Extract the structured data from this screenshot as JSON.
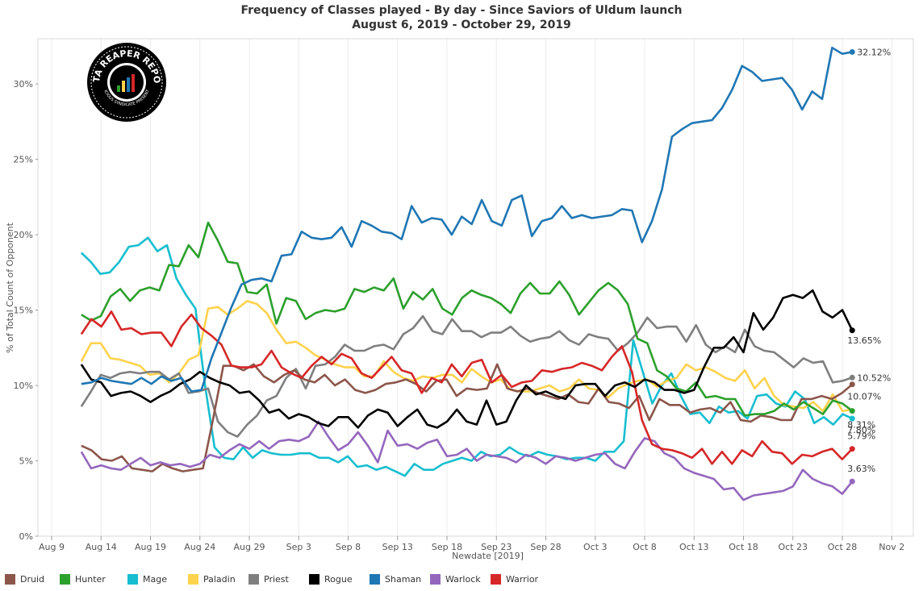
{
  "title": "Frequency of Classes played - By day - Since Saviors of Uldum launch",
  "subtitle": "August 6, 2019 - October 29, 2019",
  "logo": {
    "text_top": "DATA REAPER REPORT",
    "text_bottom": "VICIOUS SYNDICATE PRESENTS"
  },
  "chart_data": {
    "type": "line",
    "title": "Frequency of Classes played - By day - Since Saviors of Uldum launch",
    "subtitle": "August 6, 2019 - October 29, 2019",
    "xlabel": "Newdate [2019]",
    "ylabel": "% of Total Count of Opponent",
    "ylim": [
      0,
      33
    ],
    "yticks": [
      "0%",
      "5%",
      "10%",
      "15%",
      "20%",
      "25%",
      "30%"
    ],
    "ytick_values": [
      0,
      5,
      10,
      15,
      20,
      25,
      30
    ],
    "xticks": [
      "Aug 9",
      "Aug 14",
      "Aug 19",
      "Aug 24",
      "Aug 29",
      "Sep 3",
      "Sep 8",
      "Sep 13",
      "Sep 18",
      "Sep 23",
      "Sep 28",
      "Oct 3",
      "Oct 8",
      "Oct 13",
      "Oct 18",
      "Oct 23",
      "Oct 28",
      "Nov 2"
    ],
    "x_start": "Aug 12",
    "x_end": "Oct 29",
    "grid": "vertical",
    "legend": "bottom",
    "series": [
      {
        "name": "Druid",
        "color": "#8c564b",
        "end_label": "10.07%",
        "values": [
          6.0,
          5.7,
          5.1,
          5.0,
          5.3,
          4.5,
          4.4,
          4.3,
          4.8,
          4.5,
          4.3,
          4.4,
          4.5,
          7.8,
          11.3,
          11.3,
          11.0,
          11.4,
          10.6,
          10.2,
          10.7,
          11.0,
          10.4,
          10.2,
          10.7,
          10.0,
          10.4,
          9.7,
          9.5,
          9.7,
          10.1,
          10.2,
          10.4,
          10.1,
          9.6,
          10.3,
          10.4,
          9.3,
          9.8,
          9.7,
          9.8,
          11.4,
          9.8,
          9.6,
          9.8,
          9.5,
          9.3,
          9.1,
          9.4,
          8.9,
          8.8,
          9.8,
          8.9,
          8.8,
          8.5,
          9.3,
          7.7,
          9.1,
          8.7,
          8.7,
          8.2,
          8.4,
          8.5,
          8.2,
          8.9,
          7.7,
          7.6,
          8.0,
          7.9,
          7.7,
          7.7,
          9.1,
          9.1,
          9.3,
          9.1,
          9.5,
          10.07
        ]
      },
      {
        "name": "Hunter",
        "color": "#2ca02c",
        "end_label": "8.31%",
        "values": [
          14.7,
          14.3,
          14.6,
          15.9,
          16.4,
          15.6,
          16.3,
          16.5,
          16.3,
          18.0,
          17.9,
          19.3,
          18.5,
          20.8,
          19.6,
          18.2,
          18.1,
          16.2,
          16.1,
          16.7,
          14.1,
          15.8,
          15.6,
          14.4,
          14.8,
          15.0,
          14.9,
          15.1,
          16.4,
          16.2,
          16.5,
          16.3,
          17.1,
          15.1,
          16.2,
          15.7,
          16.4,
          15.1,
          14.7,
          15.8,
          16.3,
          16.0,
          15.8,
          15.4,
          14.8,
          16.1,
          16.8,
          16.1,
          16.1,
          16.9,
          16.0,
          14.7,
          15.5,
          16.3,
          16.8,
          16.3,
          15.4,
          13.1,
          12.8,
          11.0,
          10.6,
          9.8,
          9.6,
          10.2,
          9.2,
          9.3,
          9.1,
          9.1,
          8.0,
          8.1,
          8.1,
          8.3,
          8.8,
          8.4,
          8.9,
          8.5,
          8.1,
          9.0,
          8.8,
          8.31
        ]
      },
      {
        "name": "Mage",
        "color": "#17becf",
        "end_label": "7.80%",
        "values": [
          18.8,
          18.2,
          17.4,
          17.5,
          18.2,
          19.2,
          19.3,
          19.8,
          18.9,
          19.3,
          17.1,
          16.0,
          15.1,
          10.0,
          5.9,
          5.2,
          5.1,
          5.9,
          5.2,
          5.7,
          5.5,
          5.4,
          5.4,
          5.5,
          5.5,
          5.2,
          5.2,
          4.9,
          5.3,
          4.6,
          4.7,
          4.4,
          4.6,
          4.3,
          4.0,
          4.8,
          4.4,
          4.4,
          4.8,
          5.0,
          5.2,
          5.0,
          5.6,
          5.3,
          5.4,
          5.9,
          5.5,
          5.3,
          5.6,
          5.4,
          5.3,
          5.1,
          5.2,
          5.2,
          5.0,
          5.6,
          5.6,
          6.3,
          13.0,
          10.9,
          8.8,
          10.0,
          10.8,
          9.3,
          8.1,
          8.2,
          7.5,
          8.6,
          8.2,
          8.3,
          7.8,
          9.3,
          9.4,
          8.8,
          8.6,
          9.6,
          9.1,
          7.5,
          7.9,
          7.4,
          8.1,
          7.8
        ]
      },
      {
        "name": "Paladin",
        "color": "#ffd24d",
        "end_label": "",
        "values": [
          11.6,
          12.8,
          12.8,
          11.8,
          11.7,
          11.5,
          11.3,
          10.7,
          10.8,
          10.2,
          10.8,
          11.7,
          12.0,
          15.1,
          15.2,
          14.7,
          15.1,
          15.6,
          15.4,
          14.8,
          13.7,
          12.8,
          12.9,
          12.5,
          12.0,
          11.7,
          11.4,
          11.2,
          11.2,
          10.6,
          10.6,
          11.6,
          10.9,
          10.5,
          10.3,
          10.6,
          10.5,
          10.7,
          10.7,
          10.2,
          11.1,
          10.6,
          10.2,
          10.4,
          9.7,
          9.6,
          9.6,
          9.8,
          10.0,
          9.6,
          9.8,
          10.4,
          9.8,
          9.7,
          9.2,
          9.8,
          10.1,
          10.3,
          10.4,
          9.9,
          10.3,
          10.5,
          11.4,
          11.0,
          11.2,
          10.9,
          10.5,
          10.3,
          11.0,
          9.8,
          10.5,
          9.3,
          8.7,
          8.6,
          8.5,
          8.9,
          8.3,
          9.4,
          8.3,
          8.4
        ]
      },
      {
        "name": "Priest",
        "color": "#7f7f7f",
        "end_label": "10.52%",
        "values": [
          8.6,
          9.6,
          10.7,
          10.5,
          10.8,
          10.9,
          10.8,
          10.9,
          10.9,
          10.4,
          10.8,
          9.5,
          9.6,
          9.8,
          7.6,
          6.9,
          6.6,
          7.4,
          8.0,
          9.0,
          9.3,
          10.5,
          11.1,
          9.8,
          11.3,
          11.4,
          11.9,
          12.7,
          12.3,
          12.3,
          12.6,
          12.7,
          12.4,
          13.4,
          13.8,
          14.6,
          13.6,
          13.4,
          14.4,
          13.6,
          13.6,
          13.2,
          13.5,
          13.5,
          13.9,
          13.3,
          12.9,
          13.1,
          13.2,
          13.6,
          13.0,
          12.7,
          13.4,
          13.2,
          13.1,
          12.3,
          12.8,
          13.5,
          14.5,
          13.8,
          13.9,
          13.9,
          12.9,
          14.0,
          12.7,
          12.2,
          12.6,
          12.2,
          13.7,
          12.6,
          12.3,
          12.2,
          11.7,
          11.2,
          11.8,
          11.5,
          11.6,
          10.2,
          10.3,
          10.52
        ]
      },
      {
        "name": "Rogue",
        "color": "#000000",
        "end_label": "13.65%",
        "values": [
          11.4,
          10.4,
          10.2,
          9.3,
          9.5,
          9.6,
          9.3,
          8.9,
          9.3,
          9.6,
          10.1,
          10.4,
          10.9,
          10.5,
          10.2,
          10.0,
          9.5,
          9.6,
          9.0,
          8.2,
          8.4,
          7.8,
          8.1,
          7.9,
          7.5,
          7.3,
          7.9,
          7.9,
          7.2,
          8.0,
          8.4,
          8.2,
          7.3,
          7.9,
          8.4,
          7.4,
          7.2,
          7.6,
          8.4,
          7.6,
          7.4,
          9.0,
          7.4,
          7.6,
          9.0,
          10.0,
          9.4,
          9.6,
          9.3,
          9.1,
          10.0,
          10.1,
          10.1,
          9.3,
          10.0,
          10.2,
          9.9,
          10.4,
          10.2,
          9.7,
          9.7,
          9.5,
          9.7,
          11.2,
          12.5,
          12.5,
          13.2,
          12.2,
          14.8,
          13.7,
          14.5,
          15.8,
          16.0,
          15.8,
          16.3,
          14.9,
          14.5,
          15.0,
          13.65
        ]
      },
      {
        "name": "Shaman",
        "color": "#1f77b4",
        "end_label": "32.12%",
        "values": [
          10.1,
          10.2,
          10.5,
          10.3,
          10.2,
          10.1,
          10.5,
          10.1,
          10.6,
          10.3,
          10.5,
          9.6,
          9.7,
          11.8,
          13.5,
          15.2,
          16.7,
          17.0,
          17.1,
          16.9,
          18.6,
          18.7,
          20.2,
          19.8,
          19.7,
          19.8,
          20.5,
          19.2,
          20.9,
          20.6,
          20.2,
          20.1,
          19.7,
          21.9,
          20.8,
          21.1,
          21.0,
          20.0,
          21.2,
          20.7,
          22.3,
          20.9,
          20.6,
          22.3,
          22.6,
          19.9,
          20.9,
          21.1,
          21.9,
          21.1,
          21.3,
          21.1,
          21.2,
          21.3,
          21.7,
          21.6,
          19.5,
          20.9,
          23.0,
          26.5,
          27.0,
          27.4,
          27.5,
          27.6,
          28.4,
          29.6,
          31.2,
          30.8,
          30.2,
          30.3,
          30.4,
          29.6,
          28.3,
          29.5,
          29.0,
          32.4,
          32.0,
          32.12
        ]
      },
      {
        "name": "Warlock",
        "color": "#9467bd",
        "end_label": "3.63%",
        "values": [
          5.6,
          4.5,
          4.7,
          4.5,
          4.4,
          4.8,
          5.2,
          4.7,
          4.9,
          4.7,
          4.8,
          4.6,
          4.8,
          5.4,
          5.2,
          5.7,
          6.1,
          5.8,
          6.3,
          5.8,
          6.3,
          6.4,
          6.3,
          6.6,
          7.6,
          6.6,
          5.7,
          6.1,
          6.9,
          6.0,
          4.9,
          7.0,
          6.0,
          6.1,
          5.8,
          6.2,
          6.4,
          5.3,
          5.4,
          5.8,
          5.0,
          5.4,
          5.3,
          5.2,
          4.9,
          5.4,
          5.2,
          4.8,
          5.3,
          5.2,
          5.0,
          5.2,
          5.4,
          5.5,
          4.8,
          4.5,
          5.6,
          6.5,
          6.3,
          5.5,
          5.2,
          4.5,
          4.2,
          4.0,
          3.8,
          3.1,
          3.2,
          2.4,
          2.7,
          2.8,
          2.9,
          3.0,
          3.3,
          4.4,
          3.8,
          3.5,
          3.3,
          2.8,
          3.63
        ]
      },
      {
        "name": "Warrior",
        "color": "#d62728",
        "end_label": "5.79%",
        "values": [
          13.4,
          14.4,
          13.9,
          14.9,
          13.7,
          13.8,
          13.4,
          13.5,
          13.5,
          12.6,
          13.9,
          14.7,
          13.8,
          13.3,
          12.7,
          11.3,
          11.2,
          11.2,
          11.4,
          12.3,
          11.2,
          10.8,
          10.5,
          11.3,
          11.9,
          11.4,
          12.1,
          11.8,
          10.8,
          10.5,
          11.2,
          11.9,
          11.0,
          10.8,
          9.5,
          10.5,
          10.2,
          11.4,
          10.6,
          11.5,
          11.7,
          10.2,
          10.7,
          9.9,
          10.2,
          10.3,
          11.0,
          10.9,
          11.1,
          11.2,
          11.5,
          11.3,
          11.0,
          11.9,
          12.6,
          10.9,
          7.7,
          6.1,
          5.8,
          5.7,
          5.5,
          5.2,
          5.8,
          4.8,
          5.6,
          4.8,
          5.7,
          5.3,
          6.3,
          5.6,
          5.5,
          4.8,
          5.4,
          5.3,
          5.6,
          5.8,
          5.1,
          5.79
        ]
      }
    ]
  }
}
